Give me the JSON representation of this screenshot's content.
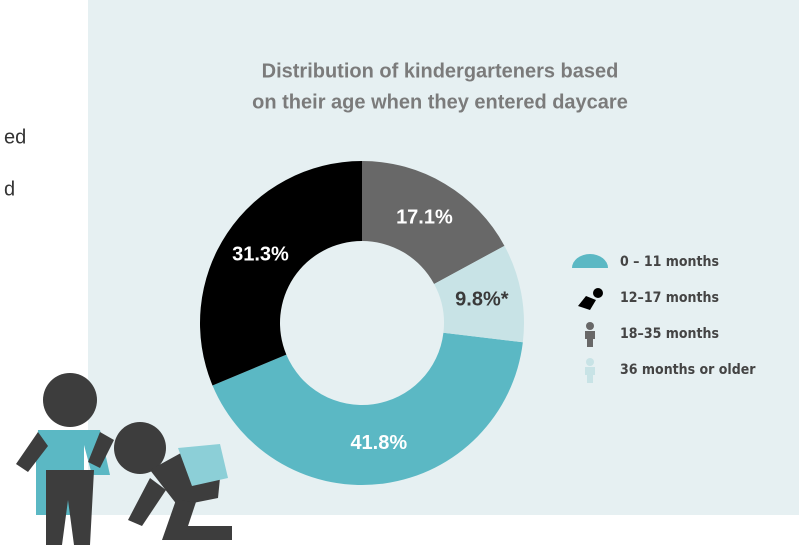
{
  "side_text": [
    "ed",
    "d"
  ],
  "chart_data": {
    "type": "donut",
    "title": [
      "Distribution of kindergarteners based",
      "on their age when they entered daycare"
    ],
    "categories": [
      "0 – 11 months",
      "12–17 months",
      "18–35 months",
      "36 months or older"
    ],
    "values": [
      41.8,
      31.3,
      17.1,
      9.8
    ],
    "value_labels": [
      "41.8%",
      "31.3%",
      "17.1%",
      "9.8%*"
    ],
    "colors": [
      "#5bb8c4",
      "#000000",
      "#686868",
      "#c8e3e6"
    ],
    "label_colors": [
      "#ffffff",
      "#ffffff",
      "#ffffff",
      "#3a3a3a"
    ],
    "legend": "right"
  }
}
